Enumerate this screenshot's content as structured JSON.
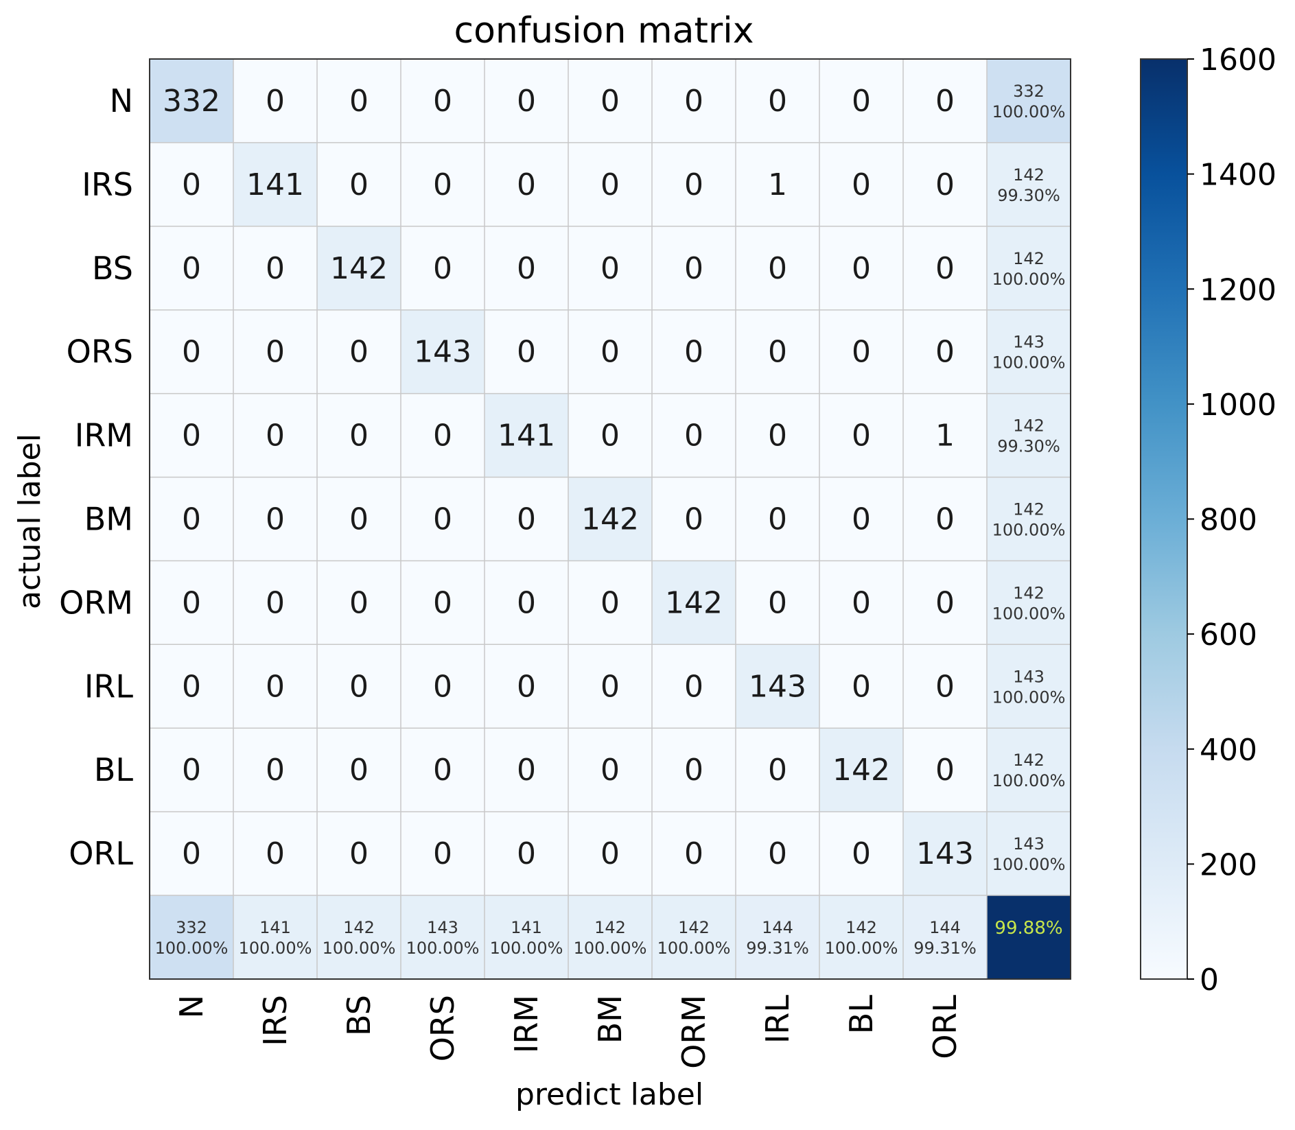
{
  "chart_data": {
    "type": "heatmap",
    "title": "confusion matrix",
    "xlabel": "predict label",
    "ylabel": "actual label",
    "labels": [
      "N",
      "IRS",
      "BS",
      "ORS",
      "IRM",
      "BM",
      "ORM",
      "IRL",
      "BL",
      "ORL"
    ],
    "matrix": [
      [
        332,
        0,
        0,
        0,
        0,
        0,
        0,
        0,
        0,
        0
      ],
      [
        0,
        141,
        0,
        0,
        0,
        0,
        0,
        1,
        0,
        0
      ],
      [
        0,
        0,
        142,
        0,
        0,
        0,
        0,
        0,
        0,
        0
      ],
      [
        0,
        0,
        0,
        143,
        0,
        0,
        0,
        0,
        0,
        0
      ],
      [
        0,
        0,
        0,
        0,
        141,
        0,
        0,
        0,
        0,
        1
      ],
      [
        0,
        0,
        0,
        0,
        0,
        142,
        0,
        0,
        0,
        0
      ],
      [
        0,
        0,
        0,
        0,
        0,
        0,
        142,
        0,
        0,
        0
      ],
      [
        0,
        0,
        0,
        0,
        0,
        0,
        0,
        143,
        0,
        0
      ],
      [
        0,
        0,
        0,
        0,
        0,
        0,
        0,
        0,
        142,
        0
      ],
      [
        0,
        0,
        0,
        0,
        0,
        0,
        0,
        0,
        0,
        143
      ]
    ],
    "row_summary": [
      {
        "total": "332",
        "pct": "100.00%"
      },
      {
        "total": "142",
        "pct": "99.30%"
      },
      {
        "total": "142",
        "pct": "100.00%"
      },
      {
        "total": "143",
        "pct": "100.00%"
      },
      {
        "total": "142",
        "pct": "99.30%"
      },
      {
        "total": "142",
        "pct": "100.00%"
      },
      {
        "total": "142",
        "pct": "100.00%"
      },
      {
        "total": "143",
        "pct": "100.00%"
      },
      {
        "total": "142",
        "pct": "100.00%"
      },
      {
        "total": "143",
        "pct": "100.00%"
      }
    ],
    "col_summary": [
      {
        "total": "332",
        "pct": "100.00%"
      },
      {
        "total": "141",
        "pct": "100.00%"
      },
      {
        "total": "142",
        "pct": "100.00%"
      },
      {
        "total": "143",
        "pct": "100.00%"
      },
      {
        "total": "141",
        "pct": "100.00%"
      },
      {
        "total": "142",
        "pct": "100.00%"
      },
      {
        "total": "142",
        "pct": "100.00%"
      },
      {
        "total": "144",
        "pct": "99.31%"
      },
      {
        "total": "142",
        "pct": "100.00%"
      },
      {
        "total": "144",
        "pct": "99.31%"
      }
    ],
    "overall_accuracy": "99.88%",
    "overall_accuracy_color": "#c8e64a",
    "colorbar": {
      "cmap": "Blues",
      "range": [
        0,
        1600
      ],
      "ticks": [
        0,
        200,
        400,
        600,
        800,
        1000,
        1200,
        1400,
        1600
      ]
    },
    "overall_cell_value": 1600,
    "cmap_stops": [
      "#f7fbff",
      "#deebf7",
      "#c6dbef",
      "#9ecae1",
      "#6baed6",
      "#4292c6",
      "#2171b5",
      "#08519c",
      "#08306b"
    ]
  }
}
